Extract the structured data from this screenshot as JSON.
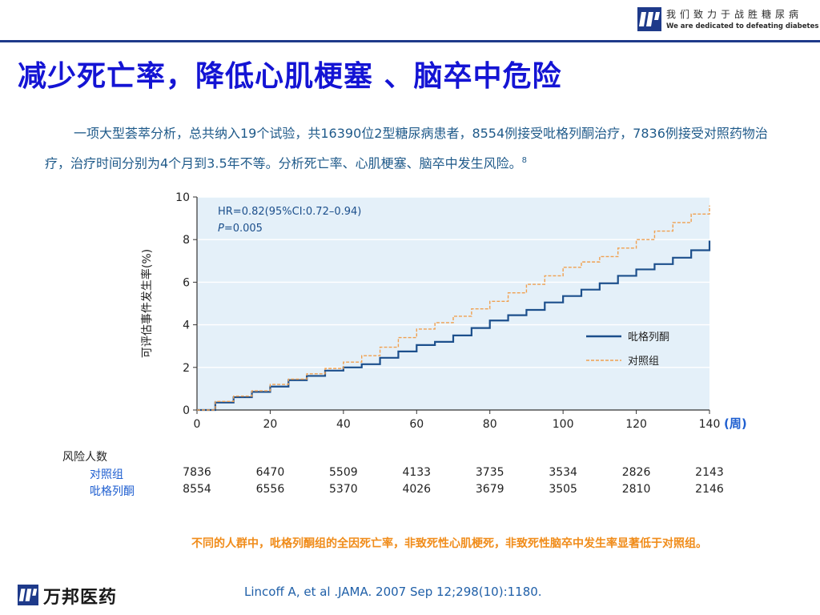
{
  "header": {
    "logo_cn": "我们致力于战胜糖尿病",
    "logo_en": "We are dedicated to defeating diabetes"
  },
  "slide": {
    "title": "减少死亡率，降低心肌梗塞 、脑卒中危险",
    "intro": "一项大型荟萃分析，总共纳入19个试验，共16390位2型糖尿病患者，8554例接受吡格列酮治疗，7836例接受对照药物治疗，治疗时间分别为4个月到3.5年不等。分析死亡率、心肌梗塞、脑卒中发生风险。",
    "intro_ref": "8",
    "note": "不同的人群中，吡格列酮组的全因死亡率，非致死性心肌梗死，非致死性脑卒中发生率显著低于对照组。",
    "citation": "Lincoff A, et al .JAMA. 2007 Sep 12;298(10):1180."
  },
  "footer": {
    "company": "万邦医药"
  },
  "chart_data": {
    "type": "line",
    "title": "",
    "ylabel": "可评估事件发生率(%)",
    "xlabel": "(周)",
    "xlim": [
      0,
      140
    ],
    "ylim": [
      0,
      10
    ],
    "x_ticks": [
      "0",
      "20",
      "40",
      "60",
      "80",
      "100",
      "120",
      "140"
    ],
    "y_ticks": [
      "0",
      "2",
      "4",
      "6",
      "8",
      "10"
    ],
    "grid": true,
    "annotation": {
      "hr": "HR=0.82(95%CI:0.72–0.94)",
      "p_italic": "P",
      "p_value": "=0.005"
    },
    "legend_position": "bottom-right",
    "colors": {
      "pioglitazone": "#1c4f8c",
      "control": "#f0a050",
      "plot_bg": "#e4f0f9",
      "grid": "#ffffff",
      "xlabel": "#1f5fd0"
    },
    "series": [
      {
        "name": "吡格列酮",
        "style": "solid",
        "x": [
          0,
          5,
          10,
          15,
          20,
          25,
          30,
          35,
          40,
          45,
          50,
          55,
          60,
          65,
          70,
          75,
          80,
          85,
          90,
          95,
          100,
          105,
          110,
          115,
          120,
          125,
          130,
          135,
          140
        ],
        "y": [
          0,
          0.35,
          0.6,
          0.85,
          1.1,
          1.4,
          1.6,
          1.85,
          2.0,
          2.15,
          2.45,
          2.75,
          3.05,
          3.2,
          3.5,
          3.85,
          4.2,
          4.45,
          4.7,
          5.05,
          5.35,
          5.65,
          5.95,
          6.3,
          6.6,
          6.85,
          7.15,
          7.5,
          7.95
        ]
      },
      {
        "name": "对照组",
        "style": "dashed",
        "x": [
          0,
          5,
          10,
          15,
          20,
          25,
          30,
          35,
          40,
          45,
          50,
          55,
          60,
          65,
          70,
          75,
          80,
          85,
          90,
          95,
          100,
          105,
          110,
          115,
          120,
          125,
          130,
          135,
          140
        ],
        "y": [
          0,
          0.4,
          0.65,
          0.9,
          1.2,
          1.45,
          1.7,
          1.95,
          2.25,
          2.55,
          2.95,
          3.4,
          3.8,
          4.1,
          4.4,
          4.75,
          5.1,
          5.5,
          5.9,
          6.3,
          6.7,
          6.95,
          7.2,
          7.6,
          8.0,
          8.4,
          8.8,
          9.2,
          9.6
        ]
      }
    ]
  },
  "risk_table": {
    "title": "风险人数",
    "rows": [
      {
        "label": "对照组",
        "values": [
          "7836",
          "6470",
          "5509",
          "4133",
          "3735",
          "3534",
          "2826",
          "2143"
        ]
      },
      {
        "label": "吡格列酮",
        "values": [
          "8554",
          "6556",
          "5370",
          "4026",
          "3679",
          "3505",
          "2810",
          "2146"
        ]
      }
    ]
  }
}
